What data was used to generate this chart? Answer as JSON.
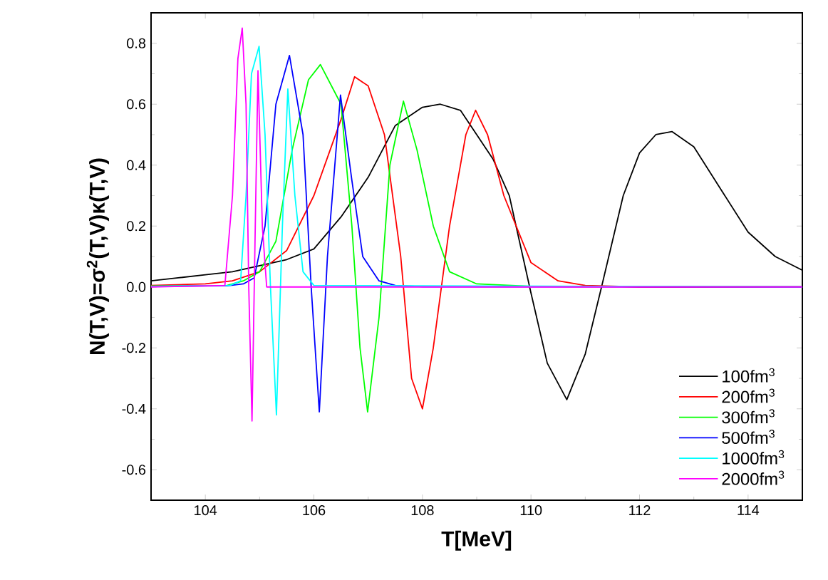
{
  "chart_data": {
    "type": "line",
    "xlabel": "T[MeV]",
    "ylabel": "N(T,V)=σ$^{2}$(T,V)κ(T,V)",
    "xlim": [
      103,
      115
    ],
    "ylim": [
      -0.7,
      0.9
    ],
    "xticks": [
      104,
      106,
      108,
      110,
      112,
      114
    ],
    "yticks": [
      -0.6,
      -0.4,
      -0.2,
      {
        "value": 0,
        "label": "0.0"
      },
      0.2,
      0.4,
      0.6,
      0.8
    ],
    "grid": false,
    "legend": "bottom right",
    "marker": "none",
    "line_style": "solid",
    "series": [
      {
        "name": "100fm$^{3}$",
        "color": "#000000",
        "x": [
          103,
          103.5,
          104,
          104.5,
          105,
          105.5,
          106,
          106.5,
          107,
          107.5,
          108,
          108.33,
          108.7,
          109,
          109.3,
          109.6,
          110,
          110.3,
          110.66,
          111,
          111.3,
          111.7,
          112,
          112.3,
          112.6,
          113,
          113.5,
          114,
          114.5,
          115
        ],
        "values": [
          0.02,
          0.03,
          0.04,
          0.05,
          0.07,
          0.09,
          0.125,
          0.23,
          0.36,
          0.53,
          0.59,
          0.6,
          0.58,
          0.5,
          0.42,
          0.3,
          -0.02,
          -0.25,
          -0.37,
          -0.22,
          0.0,
          0.3,
          0.44,
          0.5,
          0.51,
          0.46,
          0.32,
          0.18,
          0.1,
          0.055
        ]
      },
      {
        "name": "200fm$^{3}$",
        "color": "#ff0000",
        "x": [
          103,
          104,
          104.5,
          105,
          105.5,
          106,
          106.5,
          106.75,
          107,
          107.3,
          107.6,
          107.8,
          108,
          108.2,
          108.5,
          108.8,
          108.98,
          109.2,
          109.5,
          110,
          110.5,
          111,
          112,
          115
        ],
        "values": [
          0.005,
          0.01,
          0.02,
          0.05,
          0.12,
          0.3,
          0.55,
          0.69,
          0.66,
          0.5,
          0.1,
          -0.3,
          -0.4,
          -0.2,
          0.2,
          0.5,
          0.58,
          0.5,
          0.3,
          0.08,
          0.02,
          0.005,
          0,
          0
        ]
      },
      {
        "name": "300fm$^{3}$",
        "color": "#00ff00",
        "x": [
          103,
          104.4,
          104.7,
          105,
          105.3,
          105.6,
          105.9,
          106.12,
          106.5,
          106.7,
          106.85,
          106.99,
          107.2,
          107.4,
          107.65,
          107.9,
          108.2,
          108.5,
          109,
          110,
          115
        ],
        "values": [
          0.003,
          0.005,
          0.02,
          0.05,
          0.15,
          0.45,
          0.68,
          0.73,
          0.6,
          0.2,
          -0.2,
          -0.41,
          -0.1,
          0.4,
          0.61,
          0.45,
          0.2,
          0.05,
          0.01,
          0.002,
          0
        ]
      },
      {
        "name": "500fm$^{3}$",
        "color": "#0000ff",
        "x": [
          103,
          104.4,
          104.7,
          104.9,
          105.1,
          105.3,
          105.55,
          105.8,
          105.95,
          106.1,
          106.25,
          106.49,
          106.7,
          106.9,
          107.2,
          107.5,
          108,
          115
        ],
        "values": [
          0.002,
          0.004,
          0.01,
          0.03,
          0.2,
          0.6,
          0.76,
          0.5,
          0.0,
          -0.41,
          0.1,
          0.63,
          0.35,
          0.1,
          0.02,
          0.005,
          0.001,
          0
        ]
      },
      {
        "name": "1000fm$^{3}$",
        "color": "#00ffff",
        "x": [
          103,
          104.45,
          104.65,
          104.75,
          104.85,
          104.99,
          105.1,
          105.2,
          105.31,
          105.42,
          105.52,
          105.65,
          105.8,
          106,
          115
        ],
        "values": [
          0.002,
          0.005,
          0.02,
          0.3,
          0.7,
          0.79,
          0.5,
          0.0,
          -0.42,
          0.2,
          0.65,
          0.3,
          0.05,
          0.005,
          0
        ]
      },
      {
        "name": "2000fm$^{3}$",
        "color": "#ff00ff",
        "x": [
          103,
          104.36,
          104.5,
          104.6,
          104.68,
          104.75,
          104.8,
          104.86,
          104.92,
          104.97,
          105.05,
          105.13,
          106,
          115
        ],
        "values": [
          0.0,
          0.005,
          0.3,
          0.75,
          0.85,
          0.6,
          0.0,
          -0.44,
          0.2,
          0.71,
          0.2,
          0.0,
          0.0,
          0.0
        ]
      }
    ]
  }
}
